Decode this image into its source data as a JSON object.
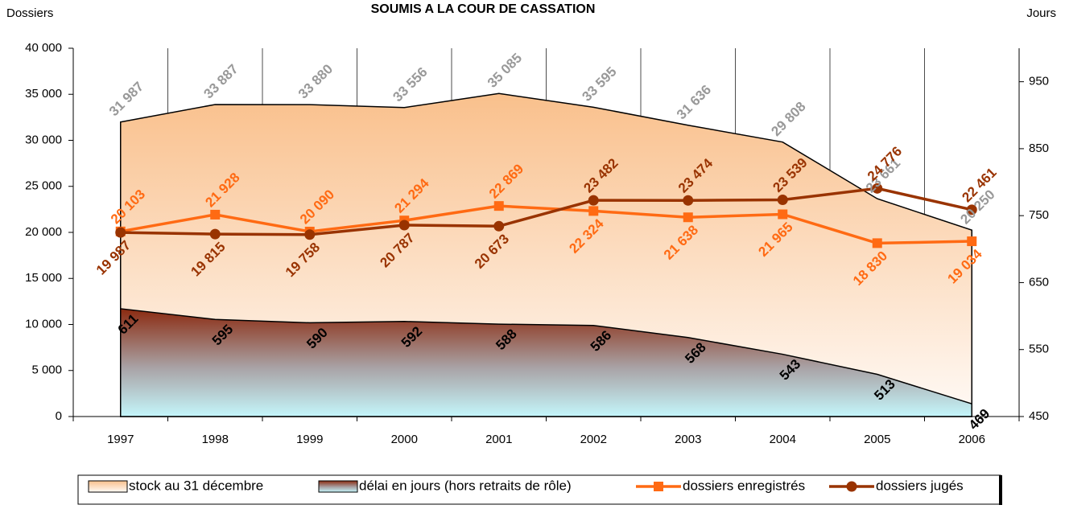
{
  "chart_data": {
    "type": "combo",
    "title": "SOUMIS A LA COUR DE CASSATION",
    "y_label": "Dossiers",
    "y2_label": "Jours",
    "categories": [
      "1997",
      "1998",
      "1999",
      "2000",
      "2001",
      "2002",
      "2003",
      "2004",
      "2005",
      "2006"
    ],
    "ylim": [
      0,
      40000
    ],
    "yticks": [
      0,
      {
        "value": 5000,
        "label": "5 000"
      },
      {
        "value": 10000,
        "label": "10 000"
      },
      {
        "value": 15000,
        "label": "15 000"
      },
      {
        "value": 20000,
        "label": "20 000"
      },
      {
        "value": 25000,
        "label": "25 000"
      },
      {
        "value": 30000,
        "label": "30 000"
      },
      {
        "value": 35000,
        "label": "35 000"
      },
      {
        "value": 40000,
        "label": "40 000"
      }
    ],
    "y2lim": [
      450,
      1000
    ],
    "y2ticks": [
      450,
      550,
      650,
      750,
      850,
      950
    ],
    "series": [
      {
        "name": "stock au 31 décembre",
        "type": "area",
        "color": "#f9c08c",
        "label_color": "#999999",
        "values": [
          31987,
          33887,
          33880,
          33556,
          35085,
          33595,
          31636,
          29808,
          23661,
          20250
        ],
        "value_labels": [
          "31 987",
          "33 887",
          "33 880",
          "33 556",
          "35 085",
          "33 595",
          "31 636",
          "29 808",
          "23 661",
          "20 250"
        ]
      },
      {
        "name": "délai en jours (hors retraits de rôle)",
        "type": "area",
        "axis": "y2",
        "color": "#8b2a10",
        "label_color": "#000000",
        "values": [
          611,
          595,
          590,
          592,
          588,
          586,
          568,
          543,
          513,
          469
        ]
      },
      {
        "name": "dossiers enregistrés",
        "type": "line",
        "marker": "square",
        "color": "#ff6a13",
        "label_color": "#ff6a13",
        "values": [
          20103,
          21928,
          20090,
          21294,
          22869,
          22324,
          21638,
          21965,
          18830,
          19034
        ],
        "value_labels": [
          "20 103",
          "21 928",
          "20 090",
          "21 294",
          "22 869",
          "22 324",
          "21 638",
          "21 965",
          "18 830",
          "19 034"
        ]
      },
      {
        "name": "dossiers jugés",
        "type": "line",
        "marker": "circle",
        "color": "#993300",
        "label_color": "#993300",
        "values": [
          19987,
          19815,
          19758,
          20787,
          20673,
          23482,
          23474,
          23539,
          24776,
          22461
        ],
        "value_labels": [
          "19 987",
          "19 815",
          "19 758",
          "20 787",
          "20 673",
          "23 482",
          "23 474",
          "23 539",
          "24 776",
          "22 461"
        ]
      }
    ]
  }
}
